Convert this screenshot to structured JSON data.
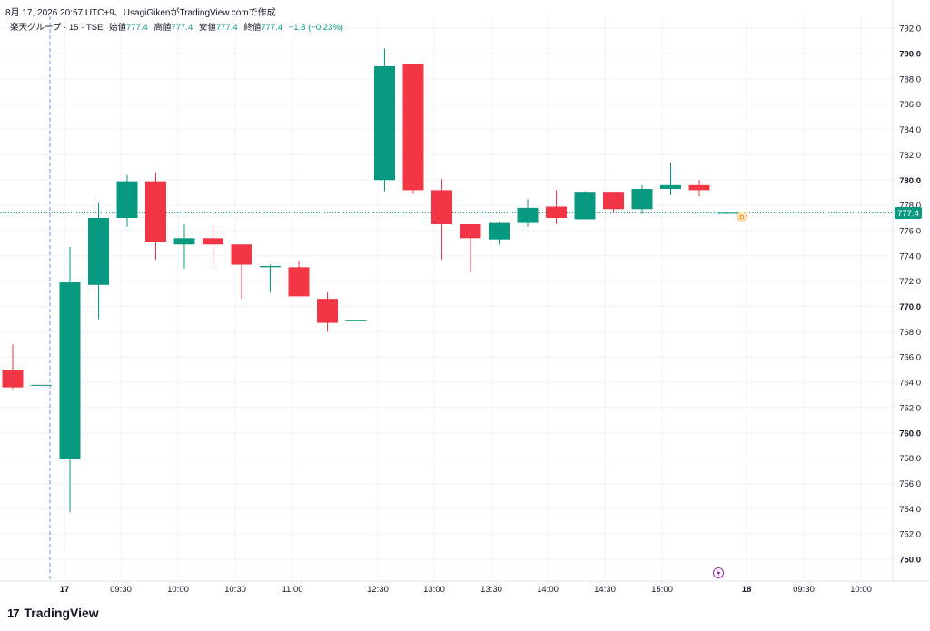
{
  "caption": "8月 17, 2026 20:57 UTC+9、UsagiGikenがTradingView.comで作成",
  "legend": {
    "symbol": "楽天グループ · 15 · TSE",
    "open_label": "始値",
    "open_value": "777.4",
    "high_label": "高値",
    "high_value": "777.4",
    "low_label": "安値",
    "low_value": "777.4",
    "close_label": "終値",
    "close_value": "777.4",
    "change": "−1.8 (−0.23%)"
  },
  "brand": {
    "mark": "17",
    "name": "TradingView"
  },
  "colors": {
    "up": "#089981",
    "down": "#f23645",
    "grid": "#f0f3fa",
    "crosshair": "#2962ff",
    "text": "#131722"
  },
  "chart_data": {
    "type": "candlestick",
    "ylim": [
      748,
      793
    ],
    "y_ticks": [
      "750.0",
      "752.0",
      "754.0",
      "756.0",
      "758.0",
      "760.0",
      "762.0",
      "764.0",
      "766.0",
      "768.0",
      "770.0",
      "772.0",
      "774.0",
      "776.0",
      "778.0",
      "780.0",
      "782.0",
      "784.0",
      "786.0",
      "788.0",
      "790.0",
      "792.0"
    ],
    "x_ticks": [
      "17",
      "09:30",
      "10:00",
      "10:30",
      "11:00",
      "12:30",
      "13:00",
      "13:30",
      "14:00",
      "14:30",
      "15:00",
      "18",
      "09:30",
      "10:00"
    ],
    "last_price_label": "777.4",
    "dividend_marker": "D",
    "candles": [
      {
        "o": 765.0,
        "h": 767.0,
        "l": 763.4,
        "c": 763.6
      },
      {
        "o": 763.8,
        "h": 763.8,
        "l": 763.8,
        "c": 763.8
      },
      {
        "o": 757.9,
        "h": 774.7,
        "l": 753.7,
        "c": 771.9
      },
      {
        "o": 771.7,
        "h": 778.2,
        "l": 769.0,
        "c": 777.0
      },
      {
        "o": 777.0,
        "h": 780.4,
        "l": 776.3,
        "c": 779.9
      },
      {
        "o": 779.9,
        "h": 780.6,
        "l": 773.7,
        "c": 775.1
      },
      {
        "o": 774.9,
        "h": 776.5,
        "l": 773.0,
        "c": 775.4
      },
      {
        "o": 775.4,
        "h": 776.3,
        "l": 773.2,
        "c": 774.9
      },
      {
        "o": 774.9,
        "h": 774.9,
        "l": 770.6,
        "c": 773.3
      },
      {
        "o": 773.1,
        "h": 773.3,
        "l": 771.1,
        "c": 773.2
      },
      {
        "o": 773.1,
        "h": 773.6,
        "l": 770.8,
        "c": 770.8
      },
      {
        "o": 770.6,
        "h": 771.1,
        "l": 768.0,
        "c": 768.7
      },
      {
        "o": 768.9,
        "h": 768.9,
        "l": 768.9,
        "c": 768.9
      },
      {
        "o": 780.0,
        "h": 790.4,
        "l": 779.1,
        "c": 789.0
      },
      {
        "o": 789.2,
        "h": 789.2,
        "l": 778.9,
        "c": 779.2
      },
      {
        "o": 779.2,
        "h": 780.1,
        "l": 773.7,
        "c": 776.5
      },
      {
        "o": 776.5,
        "h": 776.5,
        "l": 772.7,
        "c": 775.4
      },
      {
        "o": 775.3,
        "h": 776.7,
        "l": 774.9,
        "c": 776.6
      },
      {
        "o": 776.6,
        "h": 778.5,
        "l": 776.3,
        "c": 777.8
      },
      {
        "o": 777.9,
        "h": 779.2,
        "l": 776.5,
        "c": 777.0
      },
      {
        "o": 776.9,
        "h": 779.1,
        "l": 776.9,
        "c": 779.0
      },
      {
        "o": 779.0,
        "h": 779.0,
        "l": 777.4,
        "c": 777.7
      },
      {
        "o": 777.7,
        "h": 779.6,
        "l": 777.3,
        "c": 779.3
      },
      {
        "o": 779.3,
        "h": 781.4,
        "l": 778.8,
        "c": 779.6
      },
      {
        "o": 779.6,
        "h": 780.0,
        "l": 778.7,
        "c": 779.2
      },
      {
        "o": 777.4,
        "h": 777.4,
        "l": 777.4,
        "c": 777.4
      }
    ]
  }
}
